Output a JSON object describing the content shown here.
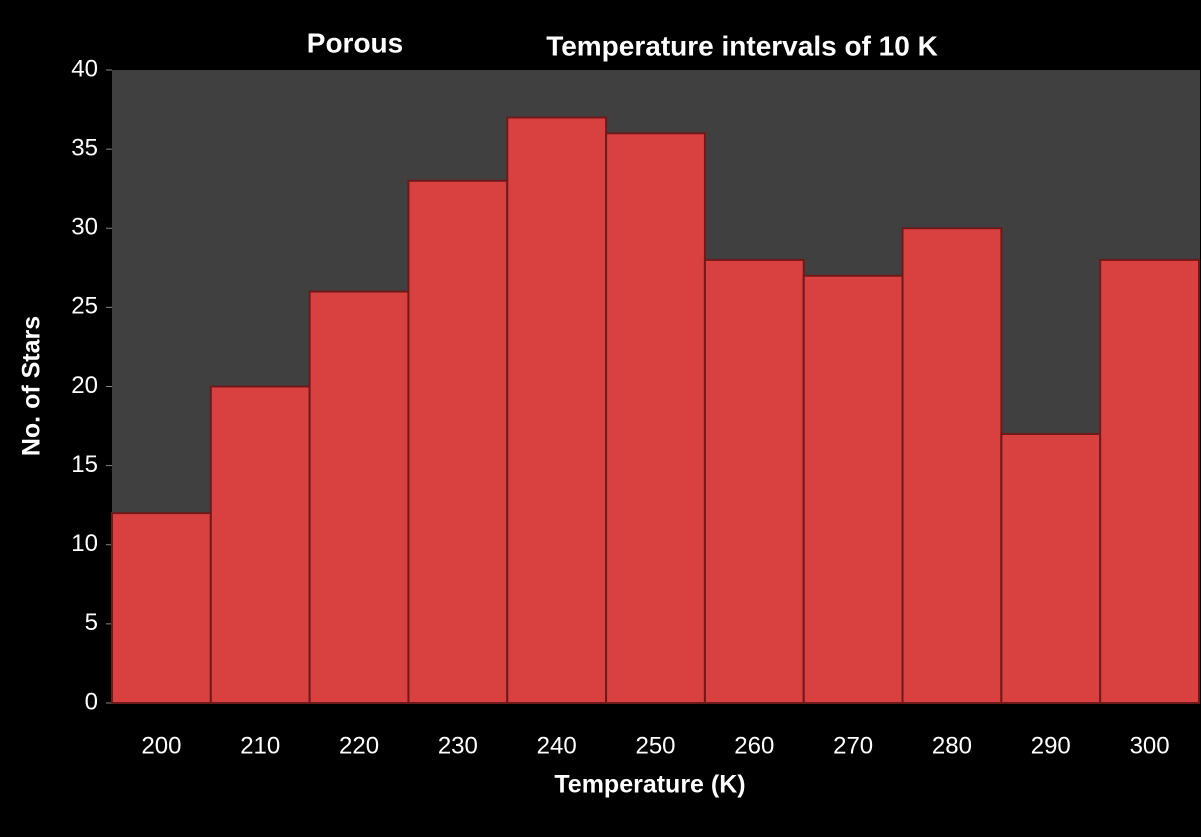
{
  "chart_data": {
    "type": "bar",
    "title": "Temperature intervals of 10 K",
    "subtitle": "Porous",
    "x_label": "Temperature (K)",
    "y_label": "No. of Stars",
    "categories": [
      "200",
      "210",
      "220",
      "230",
      "240",
      "250",
      "260",
      "270",
      "280",
      "290",
      "300"
    ],
    "values": [
      12,
      20,
      26,
      33,
      37,
      36,
      28,
      27,
      30,
      17,
      28
    ],
    "color": "#d94141",
    "ylim": [
      0,
      40
    ],
    "yticks": [
      0,
      5,
      10,
      15,
      20,
      25,
      30,
      35,
      40
    ],
    "grid": false
  }
}
